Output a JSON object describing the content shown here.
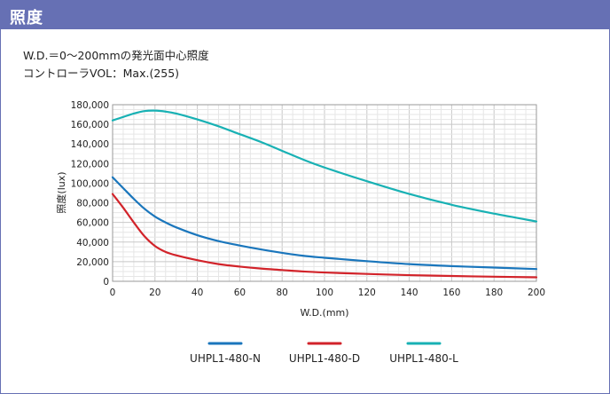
{
  "header": {
    "title": "照度"
  },
  "description": {
    "line1": "W.D.＝0～200mmの発光面中心照度",
    "line2": "コントローラVOL：Max.(255)"
  },
  "colors": {
    "header_bg": "#6670b4",
    "series_n": "#1a76bc",
    "series_d": "#d2232a",
    "series_l": "#18b1b4"
  },
  "chart_data": {
    "type": "line",
    "xlabel": "W.D.(mm)",
    "ylabel": "照度(lux)",
    "xlim": [
      0,
      200
    ],
    "ylim": [
      0,
      180000
    ],
    "xticks": [
      0,
      20,
      40,
      60,
      80,
      100,
      120,
      140,
      160,
      180,
      200
    ],
    "yticks": [
      0,
      20000,
      40000,
      60000,
      80000,
      100000,
      120000,
      140000,
      160000,
      180000
    ],
    "xtick_labels": [
      "0",
      "20",
      "40",
      "60",
      "80",
      "100",
      "120",
      "140",
      "160",
      "180",
      "200"
    ],
    "ytick_labels": [
      "0",
      "20,000",
      "40,000",
      "60,000",
      "80,000",
      "100,000",
      "120,000",
      "140,000",
      "160,000",
      "180,000"
    ],
    "grid": true,
    "legend_position": "bottom",
    "series": [
      {
        "name": "UHPL1-480-N",
        "color": "#1a76bc",
        "x": [
          0,
          5,
          10,
          15,
          20,
          25,
          30,
          40,
          50,
          60,
          70,
          80,
          90,
          100,
          120,
          140,
          160,
          180,
          200
        ],
        "y": [
          106000,
          95000,
          84000,
          74000,
          66000,
          60000,
          55000,
          47000,
          41000,
          36500,
          32500,
          29000,
          26000,
          24000,
          20500,
          17500,
          15500,
          14000,
          12500
        ]
      },
      {
        "name": "UHPL1-480-D",
        "color": "#d2232a",
        "x": [
          0,
          5,
          10,
          15,
          20,
          25,
          30,
          40,
          50,
          60,
          70,
          80,
          90,
          100,
          120,
          140,
          160,
          180,
          200
        ],
        "y": [
          89000,
          75000,
          60000,
          46000,
          36000,
          30000,
          26500,
          21500,
          17500,
          15000,
          13000,
          11500,
          10000,
          9000,
          7500,
          6300,
          5400,
          4700,
          4100
        ]
      },
      {
        "name": "UHPL1-480-L",
        "color": "#18b1b4",
        "x": [
          0,
          5,
          10,
          15,
          20,
          25,
          30,
          40,
          50,
          60,
          70,
          80,
          90,
          100,
          120,
          140,
          160,
          180,
          200
        ],
        "y": [
          164000,
          167500,
          171000,
          173500,
          174000,
          173000,
          171000,
          165000,
          158000,
          150000,
          142000,
          133000,
          124000,
          116000,
          102000,
          89000,
          78000,
          69000,
          61000
        ]
      }
    ]
  }
}
